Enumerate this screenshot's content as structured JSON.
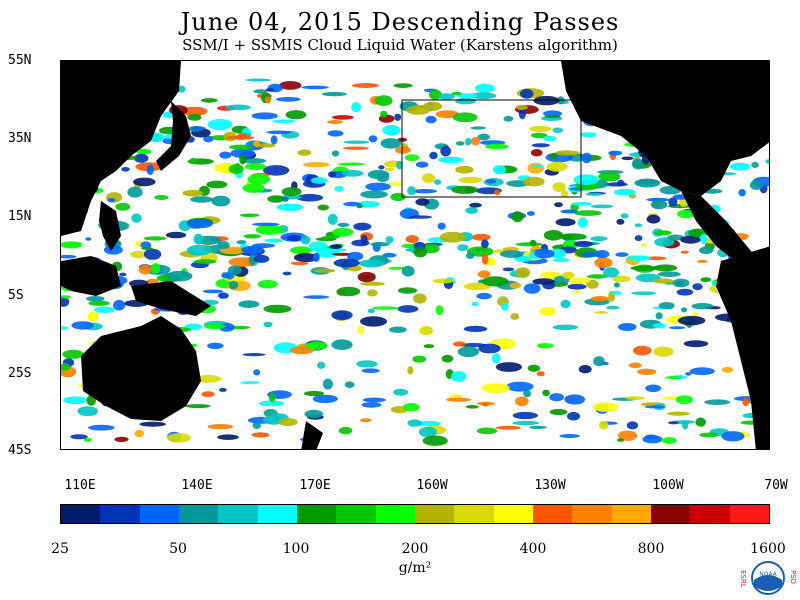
{
  "header": {
    "title": "June 04, 2015  Descending Passes",
    "subtitle": "SSM/I + SSMIS Cloud Liquid Water (Karstens algorithm)"
  },
  "map": {
    "latitude_labels": [
      "55N",
      "35N",
      "15N",
      "5S",
      "25S",
      "45S"
    ],
    "longitude_labels": [
      "110E",
      "140E",
      "170E",
      "160W",
      "130W",
      "100W",
      "70W"
    ],
    "colors": {
      "land": "#000000",
      "no_data": "#ffffff",
      "box_outline": "#000000"
    }
  },
  "colorbar": {
    "colors": [
      "#001a6e",
      "#0033b5",
      "#0066ff",
      "#009999",
      "#00c5c5",
      "#00ffff",
      "#009900",
      "#00c800",
      "#00ff00",
      "#b3b300",
      "#d9d900",
      "#ffff00",
      "#ff5500",
      "#ff7f00",
      "#ffaa00",
      "#8b0000",
      "#cc0000",
      "#ff1a1a"
    ],
    "tick_labels": [
      "25",
      "50",
      "100",
      "200",
      "400",
      "800",
      "1600"
    ],
    "units": "g/m²"
  },
  "logo": {
    "left_text": "ESRL",
    "right_text": "PSD",
    "center_text": "NOAA"
  }
}
